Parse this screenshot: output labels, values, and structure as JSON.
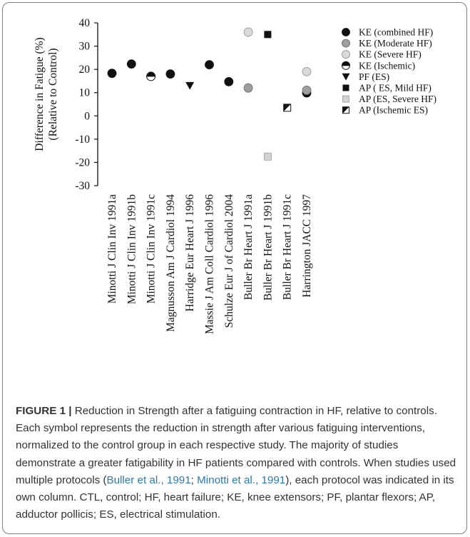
{
  "chart_data": {
    "type": "scatter",
    "title": "",
    "ylabel_line1": "Difference in Fatigue (%)",
    "ylabel_line2": "(Relative to Control)",
    "xlabel": "",
    "ylim": [
      -30,
      40
    ],
    "yticks": [
      40,
      30,
      20,
      10,
      0,
      -10,
      -20,
      -30
    ],
    "ytick_labels": [
      "40",
      "30",
      "20",
      "10",
      "0",
      "-10",
      "-20",
      "-30"
    ],
    "grid": false,
    "legend_position": "right",
    "categories": [
      "Minotti J Clin Inv 1991a",
      "Minotti J Clin Inv 1991b",
      "Minotti J Clin Inv 1991c",
      "Magnusson Am J Cardiol 1994",
      "Harridge Eur Heart J 1996",
      "Massie J Am Coll Cardiol 1996",
      "Schulze Eur J of Cardiol 2004",
      "Buller Br Heart J 1991a",
      "Buller Br Heart J 1991b",
      "Buller Br Heart J 1991c",
      "Harrington JACC 1997"
    ],
    "series": [
      {
        "name": "KE (combined HF)",
        "marker": "circle-black",
        "color": "#111111",
        "points": [
          {
            "category": "Minotti J Clin Inv 1991a",
            "y": 18.3
          },
          {
            "category": "Minotti J Clin Inv 1991b",
            "y": 22.3
          },
          {
            "category": "Magnusson Am J Cardiol 1994",
            "y": 18.0
          },
          {
            "category": "Massie J Am Coll Cardiol 1996",
            "y": 22.0
          },
          {
            "category": "Schulze Eur J of Cardiol 2004",
            "y": 14.7
          },
          {
            "category": "Harrington JACC 1997",
            "y": 9.9
          }
        ]
      },
      {
        "name": "KE (Moderate HF)",
        "marker": "circle-gray",
        "color": "#9e9e9e",
        "points": [
          {
            "category": "Buller Br Heart J 1991a",
            "y": 12.0
          },
          {
            "category": "Harrington JACC 1997",
            "y": 11.0
          }
        ]
      },
      {
        "name": "KE (Severe HF)",
        "marker": "circle-light",
        "color": "#d9d9d9",
        "points": [
          {
            "category": "Buller Br Heart J 1991a",
            "y": 36.0
          },
          {
            "category": "Harrington JACC 1997",
            "y": 19.0
          }
        ]
      },
      {
        "name": "KE (Ischemic)",
        "marker": "circle-half",
        "color": "#111111",
        "points": [
          {
            "category": "Minotti J Clin Inv 1991c",
            "y": 17.0
          }
        ]
      },
      {
        "name": "PF (ES)",
        "marker": "triangle-down",
        "color": "#111111",
        "points": [
          {
            "category": "Harridge Eur Heart J 1996",
            "y": 13.0
          }
        ]
      },
      {
        "name": "AP ( ES, Mild HF)",
        "marker": "square-black",
        "color": "#111111",
        "points": [
          {
            "category": "Buller Br Heart J 1991b",
            "y": 35.0
          }
        ]
      },
      {
        "name": "AP (ES, Severe HF)",
        "marker": "square-light",
        "color": "#d4d4d4",
        "points": [
          {
            "category": "Buller Br Heart J 1991b",
            "y": -17.5
          }
        ]
      },
      {
        "name": "AP (Ischemic ES)",
        "marker": "square-half",
        "color": "#111111",
        "points": [
          {
            "category": "Buller Br Heart J 1991c",
            "y": 3.5
          }
        ]
      }
    ]
  },
  "caption": {
    "label": "FIGURE 1 |",
    "text_1": " Reduction in Strength after a fatiguing contraction in HF, relative to controls. Each symbol represents the reduction in strength after various fatiguing interventions, normalized to the control group in each respective study. The majority of studies demonstrate a greater fatigability in HF patients compared with controls. When studies used multiple protocols (",
    "ref_1": "Buller et al., 1991",
    "text_2": "; ",
    "ref_2": "Minotti et al., 1991",
    "text_3": "), each protocol was indicated in its own column. CTL, control; HF, heart failure; KE, knee extensors; PF, plantar flexors; AP, adductor pollicis; ES, electrical stimulation."
  }
}
